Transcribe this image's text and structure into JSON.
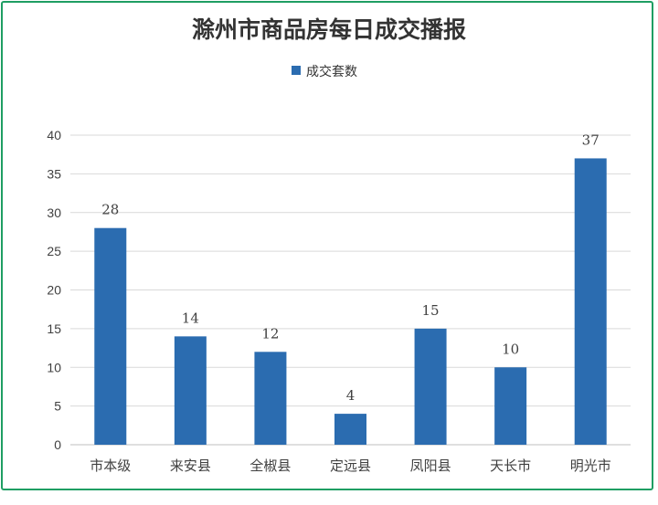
{
  "chart_data": {
    "type": "bar",
    "title": "滁州市商品房每日成交播报",
    "categories": [
      "市本级",
      "来安县",
      "全椒县",
      "定远县",
      "凤阳县",
      "天长市",
      "明光市"
    ],
    "series": [
      {
        "name": "成交套数",
        "values": [
          28,
          14,
          12,
          4,
          15,
          10,
          37
        ]
      }
    ],
    "ylim": [
      0,
      40
    ],
    "yticks": [
      0,
      5,
      10,
      15,
      20,
      25,
      30,
      35,
      40
    ],
    "grid": true,
    "legend_position": "top",
    "bar_color": "#2b6cb0",
    "data_labels": true
  }
}
